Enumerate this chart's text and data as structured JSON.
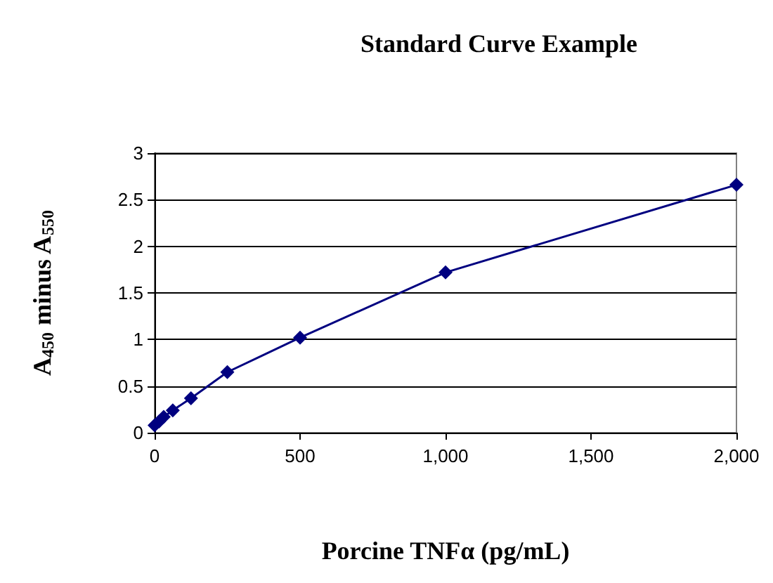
{
  "chart_data": {
    "type": "line",
    "title": "Standard Curve Example",
    "xlabel": "Porcine TNFα (pg/mL)",
    "ylabel": "A$_{450}$ minus A$_{550}$",
    "x": [
      0,
      15.6,
      31.25,
      62.5,
      125,
      250,
      500,
      1000,
      2000
    ],
    "series": [
      {
        "color": "#000080",
        "values": [
          0.08,
          0.12,
          0.17,
          0.24,
          0.37,
          0.65,
          1.02,
          1.72,
          2.66
        ]
      }
    ],
    "xlim": [
      0,
      2000
    ],
    "xticks": [
      0,
      {
        "value": 500,
        "label": "500"
      },
      {
        "value": 1000,
        "label": "1,000"
      },
      {
        "value": 1500,
        "label": "1,500"
      },
      {
        "value": 2000,
        "label": "2,000"
      }
    ],
    "ylim": [
      0,
      3
    ],
    "yticks": [
      0,
      0.5,
      1,
      1.5,
      2,
      2.5,
      3
    ],
    "grid": "y",
    "marker": "diamond",
    "line_style": "solid"
  }
}
